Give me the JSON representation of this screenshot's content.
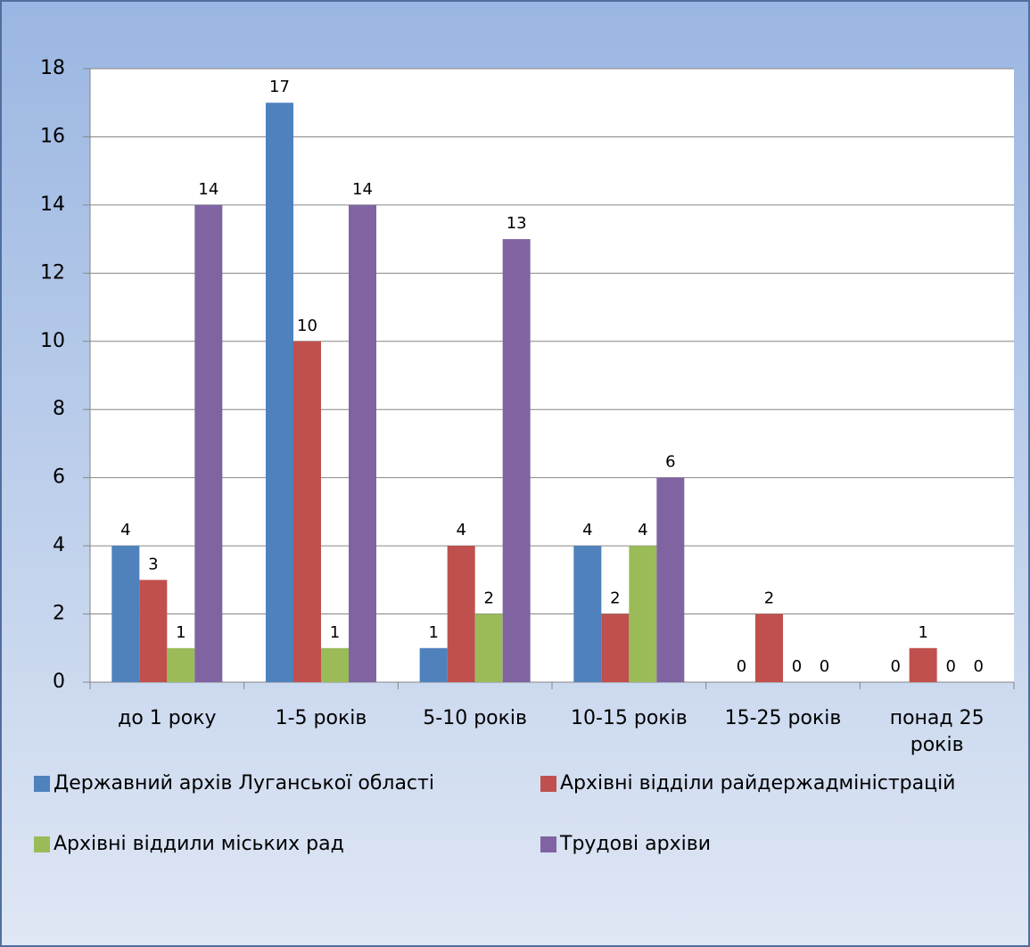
{
  "chart_data": {
    "type": "bar",
    "categories": [
      "до 1 року",
      "1-5 років",
      "5-10 років",
      "10-15 років",
      "15-25 років",
      "понад 25 років"
    ],
    "series": [
      {
        "name": "Державний архів Луганської області",
        "color": "#4f81bd",
        "values": [
          4,
          17,
          1,
          4,
          0,
          0
        ]
      },
      {
        "name": "Архівні відділи райдержадміністрацій",
        "color": "#c0504d",
        "values": [
          3,
          10,
          4,
          2,
          2,
          1
        ]
      },
      {
        "name": "Архівні віддили міських рад",
        "color": "#9bbb59",
        "values": [
          1,
          1,
          2,
          4,
          0,
          0
        ]
      },
      {
        "name": "Трудові архіви",
        "color": "#8064a2",
        "values": [
          14,
          14,
          13,
          6,
          0,
          0
        ]
      }
    ],
    "ylim": [
      0,
      18
    ],
    "yticks": [
      0,
      2,
      4,
      6,
      8,
      10,
      12,
      14,
      16,
      18
    ],
    "grid": true,
    "legend": "bottom"
  }
}
